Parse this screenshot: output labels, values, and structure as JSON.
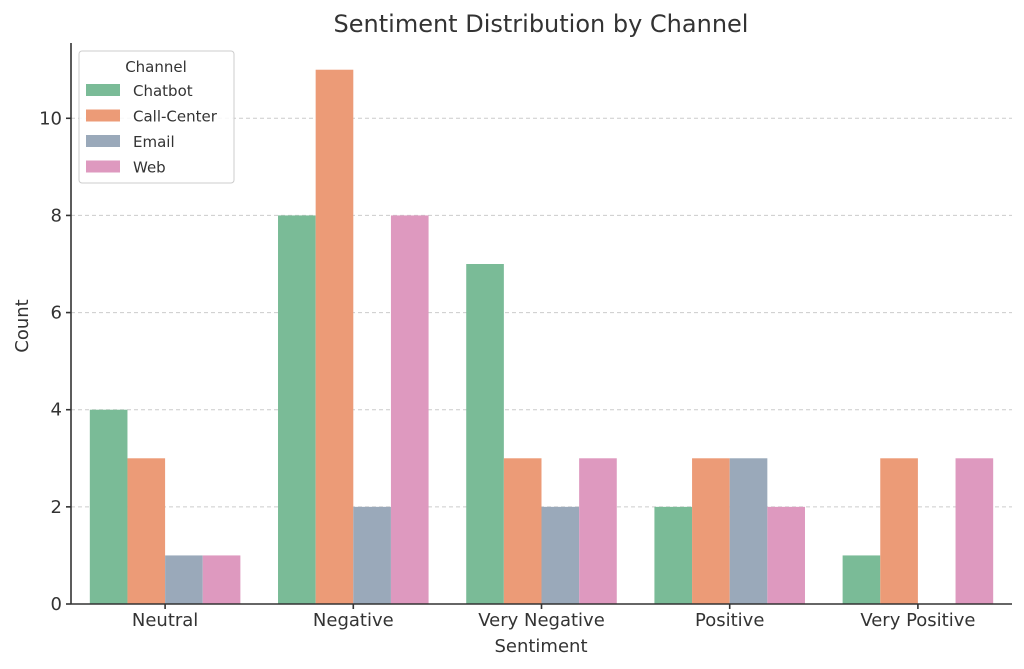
{
  "chart_data": {
    "type": "bar",
    "title": "Sentiment Distribution by Channel",
    "xlabel": "Sentiment",
    "ylabel": "Count",
    "categories": [
      "Neutral",
      "Negative",
      "Very Negative",
      "Positive",
      "Very Positive"
    ],
    "series": [
      {
        "name": "Chatbot",
        "color": "#7abb97",
        "values": [
          4,
          8,
          7,
          2,
          1
        ]
      },
      {
        "name": "Call-Center",
        "color": "#ec9b77",
        "values": [
          3,
          11,
          3,
          3,
          3
        ]
      },
      {
        "name": "Email",
        "color": "#9aa9ba",
        "values": [
          1,
          2,
          2,
          3,
          0
        ]
      },
      {
        "name": "Web",
        "color": "#de99bf",
        "values": [
          1,
          8,
          3,
          2,
          3
        ]
      }
    ],
    "ylim": [
      0,
      11.55
    ],
    "yticks": [
      0,
      2,
      4,
      6,
      8,
      10
    ],
    "grid": "y-dashed",
    "legend": {
      "title": "Channel",
      "placement": "top-left"
    }
  }
}
